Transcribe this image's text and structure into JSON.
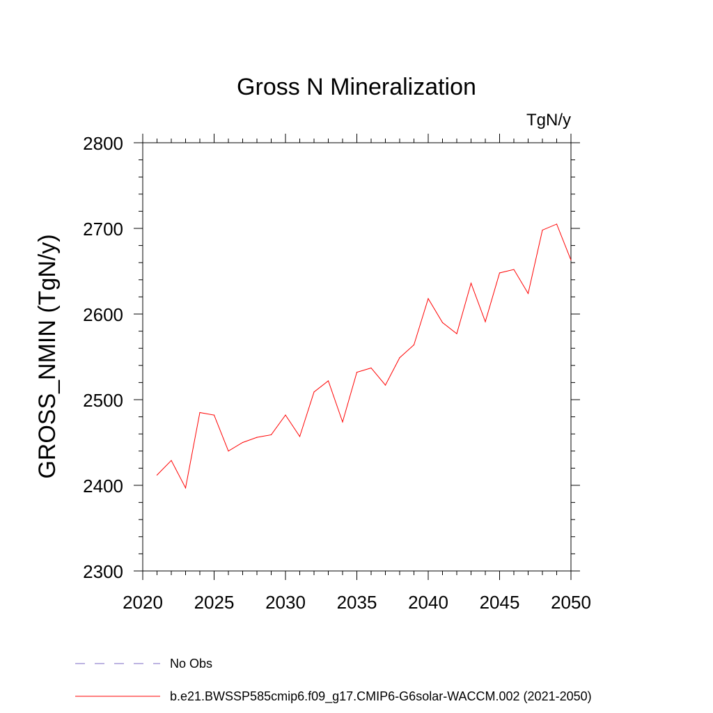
{
  "chart_data": {
    "type": "line",
    "title": "Gross N Mineralization",
    "units_label": "TgN/y",
    "ylabel": "GROSS_NMIN  (TgN/y)",
    "xlabel": "",
    "xlim": [
      2020,
      2050
    ],
    "ylim": [
      2300,
      2800
    ],
    "x_ticks": [
      "2020",
      "2025",
      "2030",
      "2035",
      "2040",
      "2045",
      "2050"
    ],
    "y_ticks": [
      "2300",
      "2400",
      "2500",
      "2600",
      "2700",
      "2800"
    ],
    "grid": false,
    "legend_position": "bottom",
    "legend": [
      {
        "label": "No Obs",
        "style": "dashed",
        "color": "#7b68c4"
      },
      {
        "label": "b.e21.BWSSP585cmip6.f09_g17.CMIP6-G6solar-WACCM.002 (2021-2050)",
        "style": "solid",
        "color": "#ff0000"
      }
    ],
    "series": [
      {
        "name": "b.e21.BWSSP585cmip6.f09_g17.CMIP6-G6solar-WACCM.002 (2021-2050)",
        "color": "#ff0000",
        "x": [
          2021,
          2022,
          2023,
          2024,
          2025,
          2026,
          2027,
          2028,
          2029,
          2030,
          2031,
          2032,
          2033,
          2034,
          2035,
          2036,
          2037,
          2038,
          2039,
          2040,
          2041,
          2042,
          2043,
          2044,
          2045,
          2046,
          2047,
          2048,
          2049,
          2050
        ],
        "values": [
          2412,
          2429,
          2397,
          2485,
          2482,
          2440,
          2450,
          2456,
          2459,
          2482,
          2457,
          2509,
          2522,
          2474,
          2532,
          2537,
          2517,
          2549,
          2564,
          2618,
          2590,
          2577,
          2636,
          2591,
          2648,
          2652,
          2624,
          2698,
          2705,
          2663
        ]
      }
    ]
  }
}
